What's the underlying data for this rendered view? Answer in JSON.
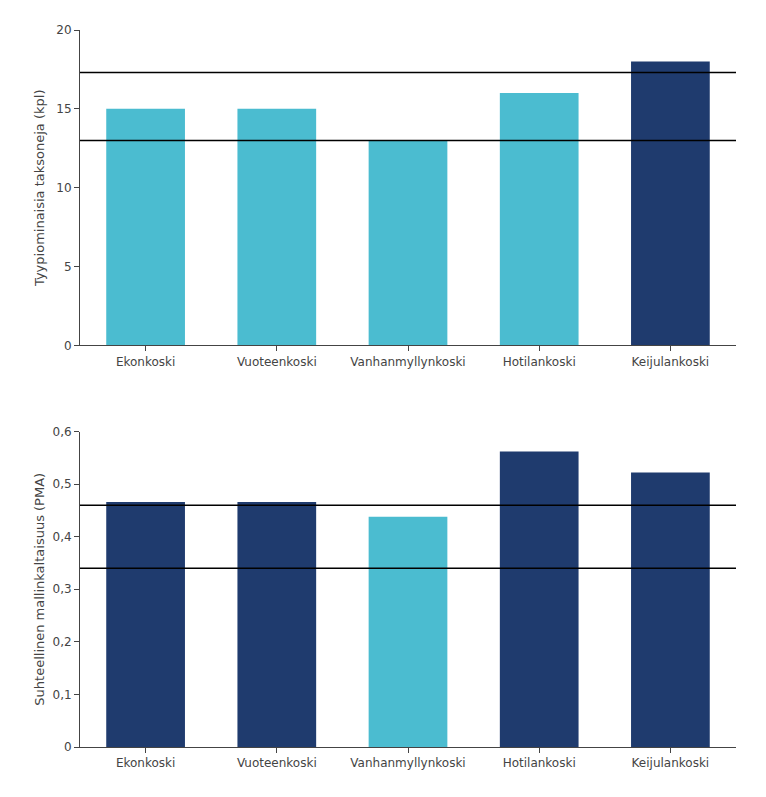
{
  "chart_data": [
    {
      "type": "bar",
      "categories": [
        "Ekonkoski",
        "Vuoteenkoski",
        "Vanhanmyllynkoski",
        "Hotilankoski",
        "Keijulankoski"
      ],
      "values": [
        15,
        15,
        13,
        16,
        18
      ],
      "colors": [
        "#4BBCD0",
        "#4BBCD0",
        "#4BBCD0",
        "#4BBCD0",
        "#1F3B6E"
      ],
      "ylabel": "Tyypiominaisia taksoneja (kpl)",
      "ylim": [
        0,
        20
      ],
      "yticks": [
        0,
        5,
        10,
        15,
        20
      ],
      "hlines": [
        13,
        17.3
      ],
      "grid": false
    },
    {
      "type": "bar",
      "categories": [
        "Ekonkoski",
        "Vuoteenkoski",
        "Vanhanmyllynkoski",
        "Hotilankoski",
        "Keijulankoski"
      ],
      "values": [
        0.466,
        0.466,
        0.438,
        0.562,
        0.522
      ],
      "colors": [
        "#1F3B6E",
        "#1F3B6E",
        "#4BBCD0",
        "#1F3B6E",
        "#1F3B6E"
      ],
      "ylabel": "Suhteellinen mallinkaltaisuus (PMA)",
      "ylim": [
        0,
        0.6
      ],
      "yticks": [
        0,
        {
          "value": 0.1,
          "label": "0,1"
        },
        {
          "value": 0.2,
          "label": "0,2"
        },
        {
          "value": 0.3,
          "label": "0,3"
        },
        {
          "value": 0.4,
          "label": "0,4"
        },
        {
          "value": 0.5,
          "label": "0,5"
        },
        {
          "value": 0.6,
          "label": "0,6"
        }
      ],
      "hlines": [
        0.34,
        0.46
      ],
      "grid": false
    }
  ]
}
